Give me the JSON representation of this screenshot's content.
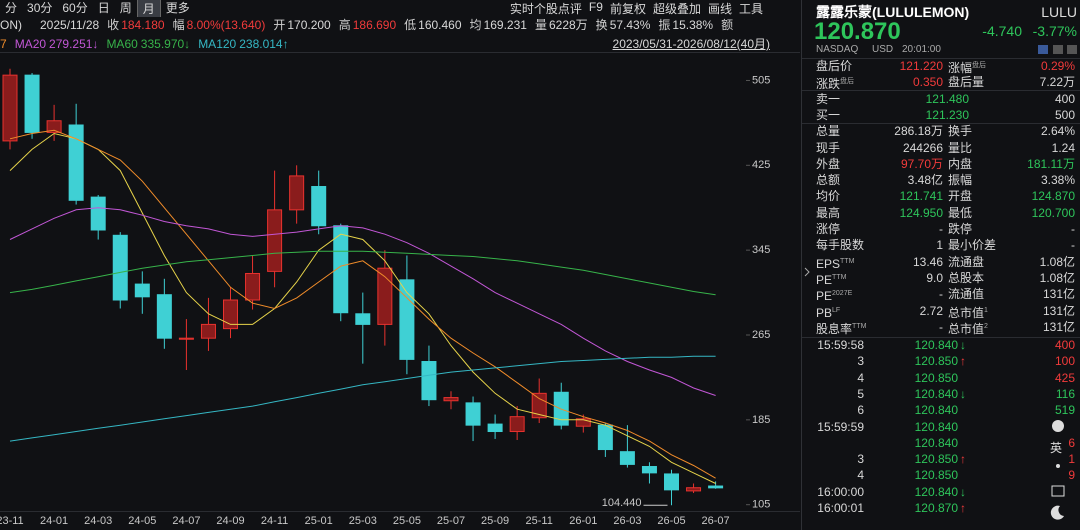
{
  "toolbar": {
    "periods": [
      "分",
      "30分",
      "60分",
      "日",
      "周",
      "月",
      "更多"
    ],
    "tools": [
      "实时个股点评",
      "F9",
      "前复权",
      "超级叠加",
      "画线",
      "工具"
    ]
  },
  "info_bar": {
    "prefix": "ON)",
    "date": "2025/11/28",
    "items": [
      {
        "label": "收",
        "value": "184.180",
        "color": "#f23b3b"
      },
      {
        "label": "幅",
        "value": "8.00%(13.640)",
        "color": "#f23b3b"
      },
      {
        "label": "开",
        "value": "170.200"
      },
      {
        "label": "高",
        "value": "186.690",
        "color": "#f23b3b"
      },
      {
        "label": "低",
        "value": "160.460"
      },
      {
        "label": "均",
        "value": "169.231"
      },
      {
        "label": "量",
        "value": "6228万"
      },
      {
        "label": "换",
        "value": "57.43%"
      },
      {
        "label": "振",
        "value": "15.38%"
      },
      {
        "label": "额"
      }
    ]
  },
  "legend": {
    "fragment": {
      "text": "7",
      "color": "#f08c2a"
    },
    "items": [
      {
        "name": "MA20",
        "value": "279.251↓",
        "color": "#c257d6"
      },
      {
        "name": "MA60",
        "value": "335.970↓",
        "color": "#37b34a"
      },
      {
        "name": "MA120",
        "value": "238.014↑",
        "color": "#35b7c4"
      }
    ],
    "range": "2023/05/31-2026/08/12(40月)"
  },
  "chart_data": {
    "type": "candlestick",
    "categories": [
      "23-11",
      null,
      "24-01",
      null,
      "24-03",
      null,
      "24-05",
      null,
      "24-07",
      null,
      "24-09",
      null,
      "24-11",
      null,
      "25-01",
      null,
      "25-03",
      null,
      "25-05",
      null,
      "25-07",
      null,
      "25-09",
      null,
      "25-11",
      null,
      "26-01",
      null,
      "26-03",
      null,
      "26-05",
      null,
      "26-07"
    ],
    "open": [
      448,
      510,
      456,
      463,
      395,
      359,
      313,
      303,
      261,
      262,
      271,
      298,
      325,
      383,
      405,
      368,
      285,
      275,
      317,
      240,
      203,
      201,
      181,
      174,
      187,
      211,
      179,
      180,
      155,
      141,
      134,
      118,
      122.6
    ],
    "high": [
      516,
      512,
      482,
      483,
      397,
      362,
      325,
      318,
      280,
      300,
      310,
      340,
      420,
      425,
      420,
      370,
      305,
      345,
      340,
      255,
      212,
      207,
      190,
      198,
      224,
      220,
      190,
      182,
      180,
      145,
      138,
      125,
      127
    ],
    "low": [
      440,
      450,
      448,
      388,
      355,
      290,
      285,
      252,
      232,
      250,
      262,
      289,
      310,
      370,
      360,
      278,
      238,
      255,
      228,
      198,
      195,
      165,
      167,
      166,
      182,
      176,
      173,
      150,
      140,
      125,
      104.44,
      116,
      120
    ],
    "close": [
      510,
      456,
      467,
      392,
      364,
      298,
      301,
      262,
      262,
      275,
      298,
      323,
      383,
      415,
      368,
      286,
      275,
      328,
      242,
      204,
      206,
      180,
      174,
      188,
      210,
      180,
      186,
      157,
      143,
      135,
      119,
      121,
      120.87
    ],
    "up_color": "#e8322e",
    "down_color": "#3fd0d4",
    "series": [
      {
        "color": "#e6d34a",
        "values": [
          420,
          440,
          455,
          450,
          440,
          420,
          380,
          340,
          305,
          285,
          275,
          275,
          290,
          315,
          345,
          360,
          355,
          335,
          305,
          285,
          255,
          230,
          210,
          195,
          190,
          185,
          185,
          180,
          170,
          160,
          145,
          135,
          125
        ]
      },
      {
        "color": "#f08c2a",
        "values": [
          450,
          455,
          458,
          450,
          440,
          430,
          410,
          385,
          360,
          335,
          310,
          295,
          290,
          300,
          315,
          330,
          335,
          320,
          300,
          280,
          262,
          248,
          235,
          220,
          205,
          195,
          188,
          182,
          175,
          165,
          152,
          142,
          130
        ]
      },
      {
        "color": "#c257d6",
        "values": [
          355,
          365,
          375,
          383,
          385,
          383,
          378,
          372,
          368,
          365,
          360,
          358,
          360,
          362,
          365,
          368,
          366,
          360,
          352,
          342,
          330,
          318,
          305,
          295,
          285,
          275,
          262,
          250,
          240,
          232,
          225,
          215,
          208
        ]
      },
      {
        "color": "#37b34a",
        "values": [
          305,
          308,
          312,
          316,
          320,
          324,
          328,
          331,
          334,
          336,
          338,
          340,
          342,
          343,
          344,
          344,
          344,
          343,
          342,
          341,
          340,
          339,
          337,
          335,
          332,
          329,
          326,
          322,
          318,
          314,
          310,
          306,
          303
        ]
      },
      {
        "color": "#35b7c4",
        "values": [
          165,
          168,
          171,
          174,
          177,
          180,
          183,
          186,
          189,
          192,
          195,
          198,
          202,
          206,
          210,
          214,
          218,
          221,
          224,
          227,
          230,
          232,
          234,
          236,
          238,
          240,
          241,
          242,
          243,
          244,
          244,
          245,
          245
        ]
      }
    ],
    "ylim": [
      100,
      529
    ],
    "yticks": [
      105,
      185,
      265,
      345,
      425,
      505
    ],
    "min_label": {
      "value": 104.44,
      "label": "104.440"
    }
  },
  "quote": {
    "name": "露露乐蒙(LULULEMON)",
    "code": "LULU",
    "price": "120.870",
    "change": "-4.740",
    "change_pct": "-3.77%",
    "market": "NASDAQ",
    "currency": "USD",
    "time": "20:01:00",
    "rows": [
      [
        {
          "label": "盘后价",
          "value": "121.220",
          "color": "#f23b3b"
        },
        {
          "label": "涨幅",
          "sup": "盘后",
          "value": "0.29%",
          "color": "#f23b3b"
        }
      ],
      [
        {
          "label": "涨跌",
          "sup": "盘后",
          "value": "0.350",
          "color": "#f23b3b"
        },
        {
          "label": "盘后量",
          "value": "7.22万"
        }
      ],
      [
        {
          "label": "卖一",
          "value": "121.480",
          "color": "#2ec55b"
        },
        {
          "value": "400"
        }
      ],
      [
        {
          "label": "买一",
          "value": "121.230",
          "color": "#2ec55b"
        },
        {
          "value": "500"
        }
      ],
      [
        {
          "label": "总量",
          "value": "286.18万"
        },
        {
          "label": "换手",
          "value": "2.64%"
        }
      ],
      [
        {
          "label": "现手",
          "value": "244266"
        },
        {
          "label": "量比",
          "value": "1.24"
        }
      ],
      [
        {
          "label": "外盘",
          "value": "97.70万",
          "color": "#f23b3b"
        },
        {
          "label": "内盘",
          "value": "181.11万",
          "color": "#2ec55b"
        }
      ],
      [
        {
          "label": "总额",
          "value": "3.48亿"
        },
        {
          "label": "振幅",
          "value": "3.38%"
        }
      ],
      [
        {
          "label": "均价",
          "value": "121.741",
          "color": "#2ec55b"
        },
        {
          "label": "开盘",
          "value": "124.870",
          "color": "#2ec55b"
        }
      ],
      [
        {
          "label": "最高",
          "value": "124.950",
          "color": "#2ec55b"
        },
        {
          "label": "最低",
          "value": "120.700",
          "color": "#2ec55b"
        }
      ],
      [
        {
          "label": "涨停",
          "value": "-"
        },
        {
          "label": "跌停",
          "value": "-"
        }
      ],
      [
        {
          "label": "每手股数",
          "value": "1"
        },
        {
          "label": "最小价差",
          "value": "-"
        }
      ],
      [
        {
          "label": "EPS",
          "sup": "TTM",
          "value": "13.46"
        },
        {
          "label": "流通盘",
          "value": "1.08亿"
        }
      ],
      [
        {
          "label": "PE",
          "sup": "TTM",
          "value": "9.0"
        },
        {
          "label": "总股本",
          "value": "1.08亿"
        }
      ],
      [
        {
          "label": "PE",
          "sup": "2027E",
          "value": "-"
        },
        {
          "label": "流通值",
          "value": "131亿"
        }
      ],
      [
        {
          "label": "PB",
          "sup": "LF",
          "value": "2.72"
        },
        {
          "label": "总市值",
          "sup": "1",
          "value": "131亿"
        }
      ],
      [
        {
          "label": "股息率",
          "sup": "TTM",
          "value": "-"
        },
        {
          "label": "总市值",
          "sup": "2",
          "value": "131亿"
        }
      ]
    ],
    "ticks": [
      {
        "time": "15:59:58",
        "price": "120.840",
        "arrow": {
          "text": "↓",
          "color": "#2ec55b"
        },
        "volume": "400",
        "volume_color": "#f23b3b"
      },
      {
        "time": "3",
        "price": "120.850",
        "arrow": {
          "text": "↑",
          "color": "#f23b3b"
        },
        "volume": "100",
        "volume_color": "#f23b3b"
      },
      {
        "time": "4",
        "price": "120.850",
        "volume": "425",
        "volume_color": "#f23b3b"
      },
      {
        "time": "5",
        "price": "120.840",
        "arrow": {
          "text": "↓",
          "color": "#2ec55b"
        },
        "volume": "116",
        "volume_color": "#2ec55b"
      },
      {
        "time": "6",
        "price": "120.840",
        "volume": "519",
        "volume_color": "#2ec55b"
      },
      {
        "time": "15:59:59",
        "price": "120.840"
      },
      {
        "price": "120.840",
        "volume": "6",
        "volume_color": "#f23b3b"
      },
      {
        "time": "3",
        "price": "120.850",
        "arrow": {
          "text": "↑",
          "color": "#f23b3b"
        },
        "volume": "1",
        "volume_color": "#f23b3b"
      },
      {
        "time": "4",
        "price": "120.850",
        "volume": "9",
        "volume_color": "#f23b3b"
      },
      {
        "time": "16:00:00",
        "price": "120.840",
        "arrow": {
          "text": "↓",
          "color": "#2ec55b"
        }
      },
      {
        "time": "16:00:01",
        "price": "120.870",
        "arrow": {
          "text": "↑",
          "color": "#f23b3b"
        }
      }
    ],
    "side_label": "英"
  }
}
